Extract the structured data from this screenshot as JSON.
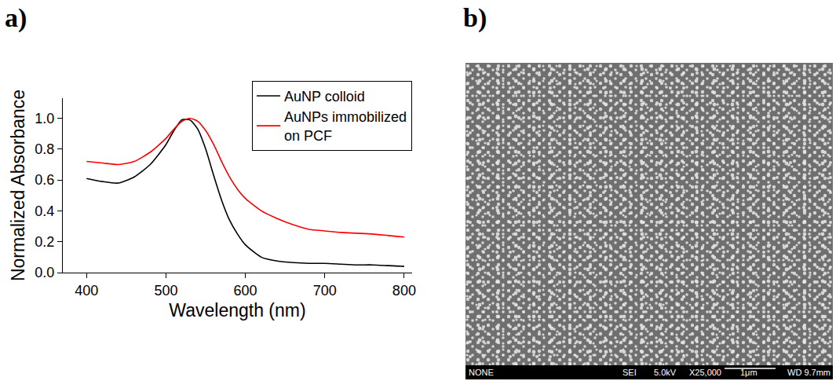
{
  "chart_data": {
    "type": "line",
    "x_label": "Wavelength (nm)",
    "y_label": "Normalized Absorbance",
    "x": [
      400,
      420,
      440,
      460,
      480,
      500,
      510,
      520,
      530,
      540,
      550,
      560,
      570,
      580,
      590,
      600,
      620,
      640,
      660,
      680,
      700,
      720,
      740,
      760,
      780,
      800
    ],
    "series": [
      {
        "name": "AuNP colloid",
        "color": "#000000",
        "values": [
          0.61,
          0.59,
          0.58,
          0.62,
          0.7,
          0.83,
          0.92,
          0.99,
          0.99,
          0.93,
          0.8,
          0.63,
          0.47,
          0.34,
          0.25,
          0.18,
          0.1,
          0.075,
          0.065,
          0.06,
          0.06,
          0.055,
          0.05,
          0.05,
          0.045,
          0.04
        ]
      },
      {
        "name": "AuNPs immobilized on PCF",
        "color": "#ff0000",
        "values": [
          0.72,
          0.71,
          0.7,
          0.72,
          0.78,
          0.87,
          0.93,
          0.98,
          1.0,
          0.98,
          0.92,
          0.83,
          0.72,
          0.62,
          0.54,
          0.48,
          0.4,
          0.35,
          0.31,
          0.28,
          0.27,
          0.26,
          0.255,
          0.25,
          0.24,
          0.23
        ]
      }
    ],
    "xlim": [
      370,
      810
    ],
    "ylim": [
      0,
      1.13
    ],
    "xticks": [
      400,
      500,
      600,
      700,
      800
    ],
    "yticks": [
      {
        "value": 0,
        "label": "0.0"
      },
      0.2,
      0.4,
      0.6,
      0.8,
      {
        "value": 1,
        "label": "1.0"
      }
    ],
    "legend": "upper right",
    "grid": false
  },
  "panel_labels": [
    "a)",
    "b)"
  ],
  "sem_image": {
    "info_bar": [
      "NONE",
      "SEI",
      "5.0kV",
      "X25,000",
      "1μm",
      "WD 9.7mm"
    ]
  }
}
